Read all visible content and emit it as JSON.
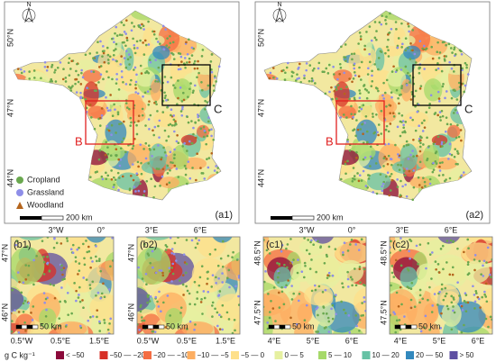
{
  "maps": [
    {
      "label": "(a1)",
      "north": "N",
      "lat_labels": [
        "50°N",
        "47°N",
        "44°N"
      ],
      "lon_labels": [
        "3°W",
        "0°",
        "3°E",
        "6°E"
      ],
      "box_labels": [
        "B",
        "C"
      ],
      "scale": "200 km"
    },
    {
      "label": "(a2)",
      "north": "N",
      "lat_labels": [
        "50°N",
        "47°N",
        "44°N"
      ],
      "lon_labels": [
        "3°W",
        "0°",
        "3°E",
        "6°E"
      ],
      "box_labels": [
        "B",
        "C"
      ],
      "scale": "200 km"
    }
  ],
  "point_legend": [
    {
      "label": "Cropland",
      "color": "#6aa84f"
    },
    {
      "label": "Grassland",
      "color": "#8e8ee8"
    },
    {
      "label": "Woodland",
      "color": "#b5651d"
    }
  ],
  "panels": [
    {
      "label": "(b1)",
      "lat_labels": [
        "47°N",
        "46°N"
      ],
      "lon_labels": [
        "0.5°W",
        "0.5°E",
        "1.5°E"
      ],
      "scale": "50 km"
    },
    {
      "label": "(b2)",
      "lat_labels": [
        "47°N",
        "46°N"
      ],
      "lon_labels": [
        "0.5°W",
        "0.5°E",
        "1.5°E"
      ],
      "scale": "50 km"
    },
    {
      "label": "(c1)",
      "lat_labels": [
        "48.5°N",
        "47.5°N"
      ],
      "lon_labels": [
        "4°E",
        "5°E",
        "6°E"
      ],
      "scale": "50 km"
    },
    {
      "label": "(c2)",
      "lat_labels": [
        "48.5°N",
        "47.5°N"
      ],
      "lon_labels": [
        "4°E",
        "5°E",
        "6°E"
      ],
      "scale": "50 km"
    }
  ],
  "legend": {
    "title": "g C kg⁻¹",
    "classes": [
      {
        "label": "< −50",
        "color": "#8b0a3a"
      },
      {
        "label": "−50 — −20",
        "color": "#d73027"
      },
      {
        "label": "−20 — −10",
        "color": "#f46d43"
      },
      {
        "label": "−10 — −5",
        "color": "#fdae61"
      },
      {
        "label": "−5 — 0",
        "color": "#fee08b"
      },
      {
        "label": "0 — 5",
        "color": "#e6f0a0"
      },
      {
        "label": "5 — 10",
        "color": "#a6d96a"
      },
      {
        "label": "10 — 20",
        "color": "#66c2a5"
      },
      {
        "label": "20 — 50",
        "color": "#3288bd"
      },
      {
        "label": "> 50",
        "color": "#5e4fa2"
      }
    ]
  }
}
